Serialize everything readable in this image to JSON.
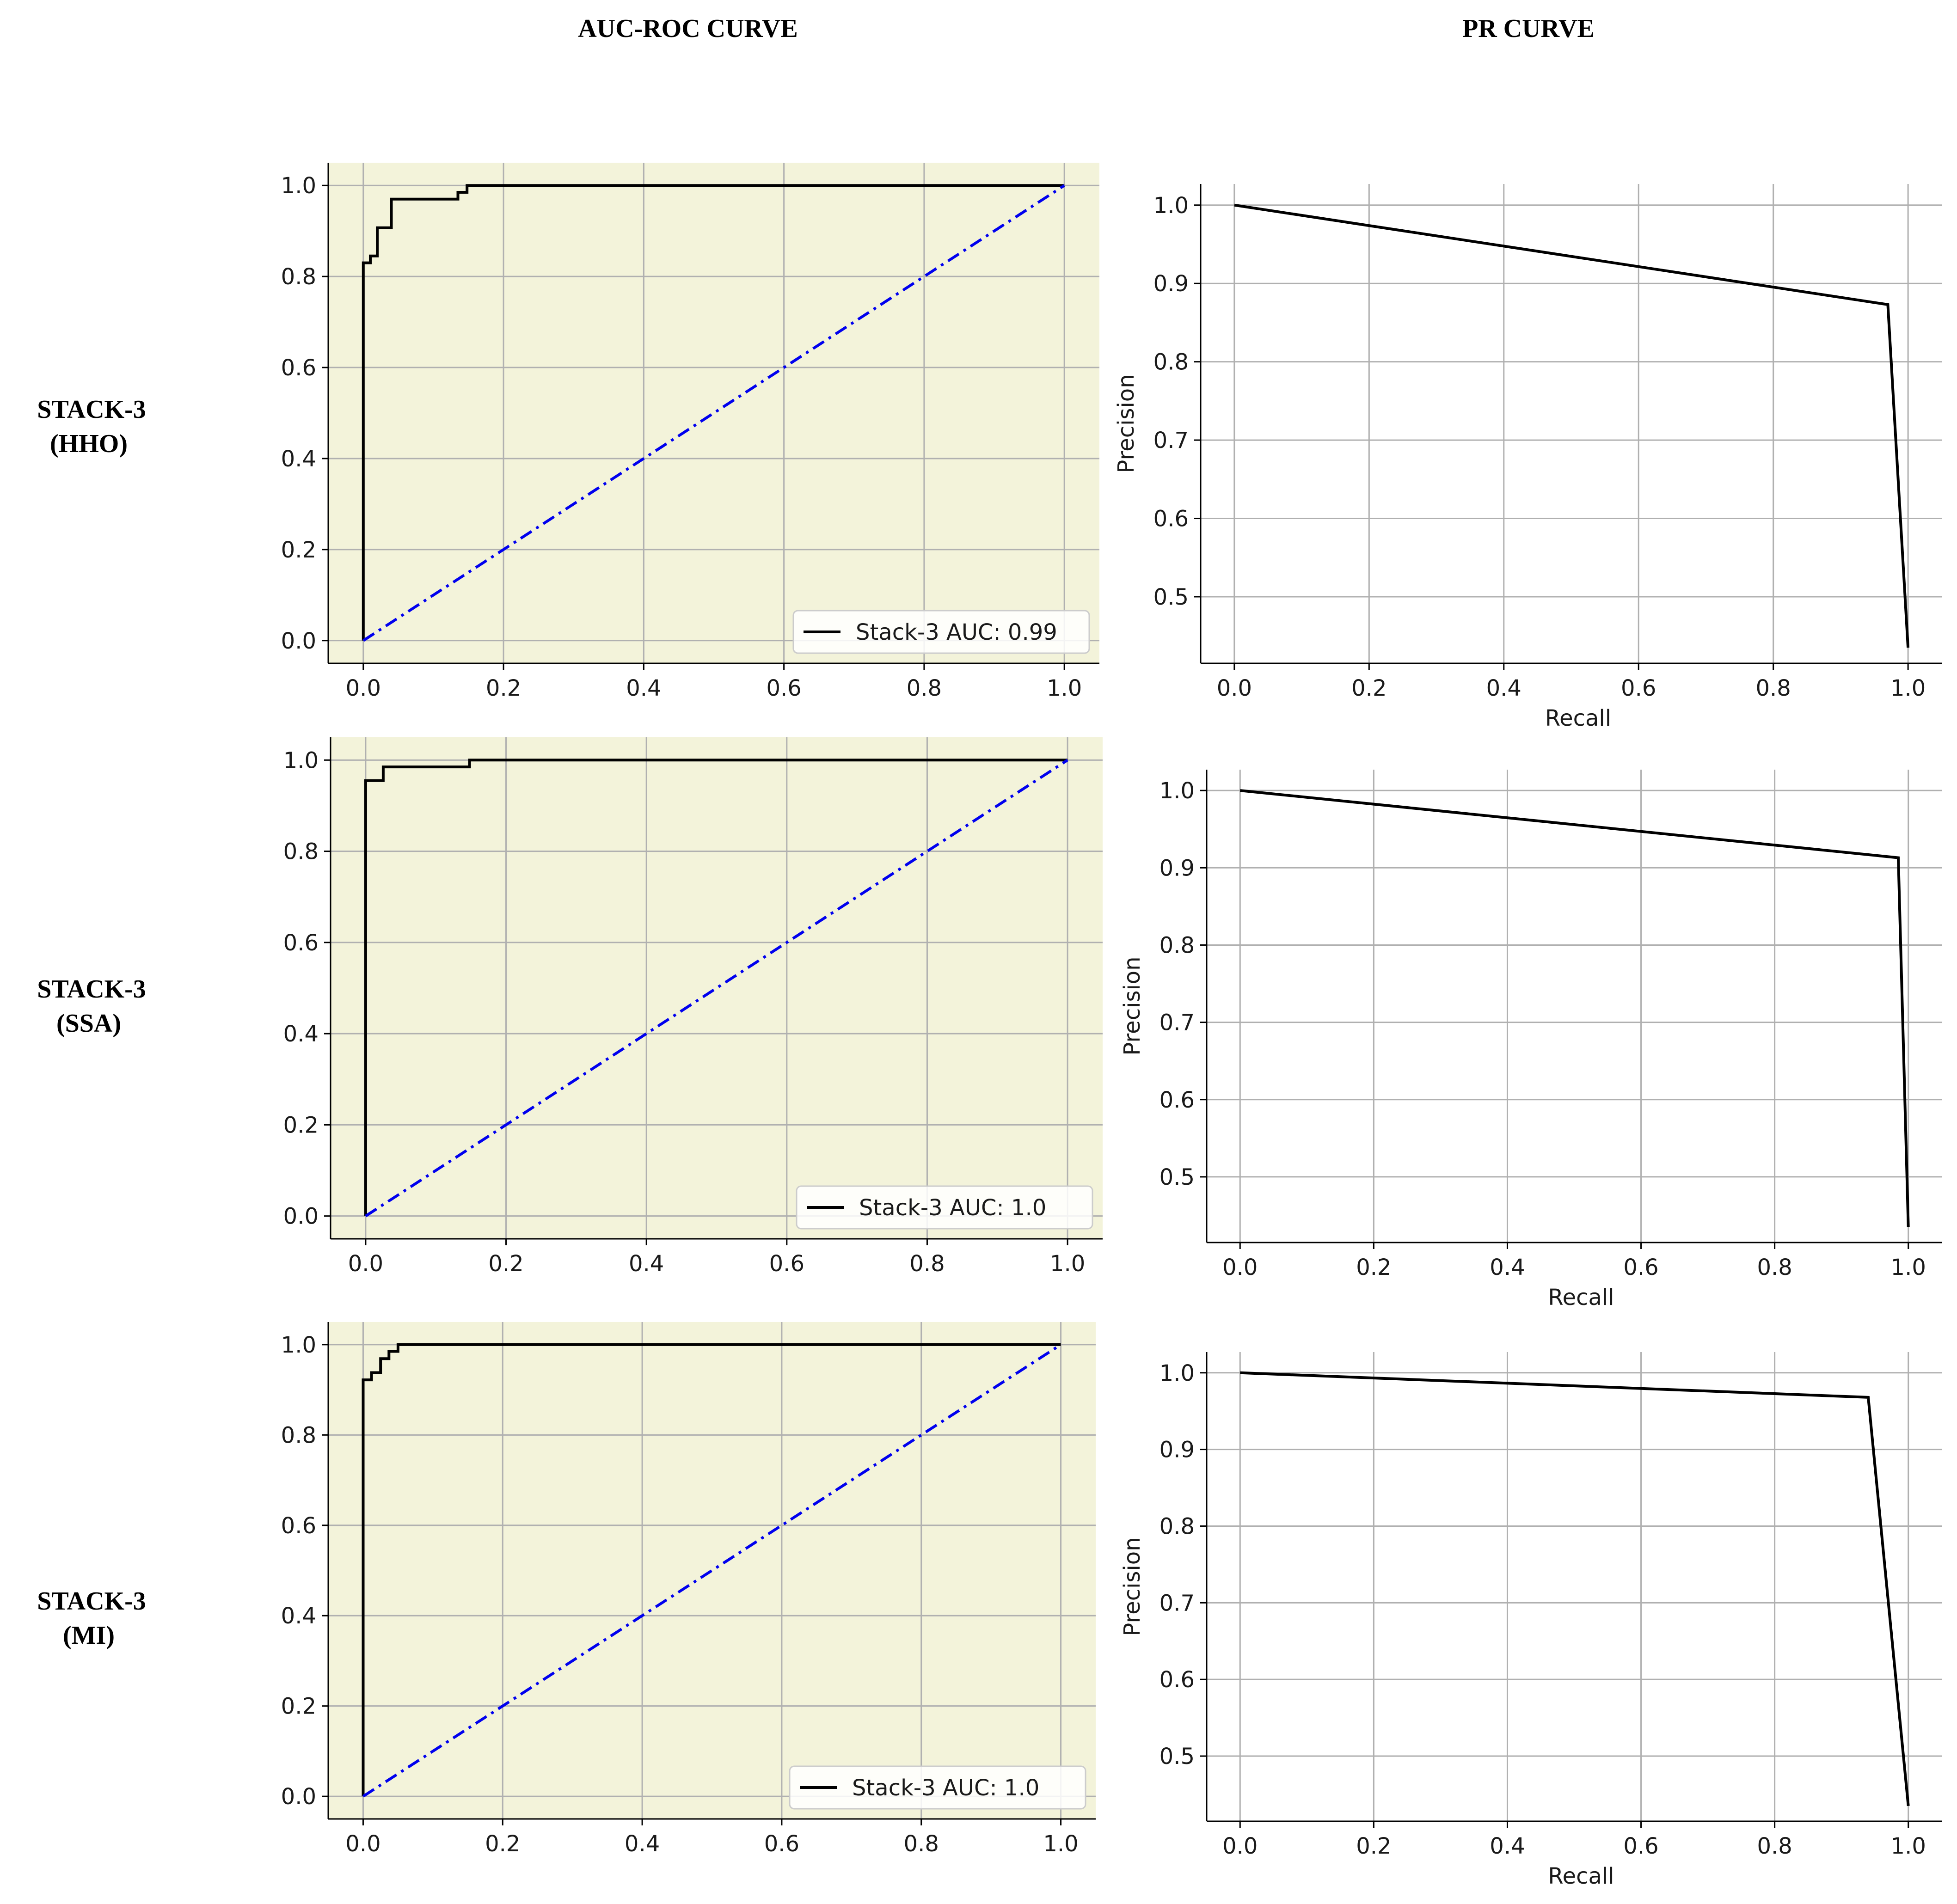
{
  "column_titles": [
    "AUC-ROC CURVE",
    "PR CURVE"
  ],
  "row_labels": [
    {
      "line1": "STACK-3",
      "line2": "(HHO)"
    },
    {
      "line1": "STACK-3",
      "line2": "(SSA)"
    },
    {
      "line1": "STACK-3",
      "line2": "(MI)"
    }
  ],
  "colors": {
    "roc_background": "#f3f3da",
    "curve": "#000000",
    "chance_line": "#0000ee",
    "grid": "#b0b0b0"
  },
  "chart_data": [
    {
      "type": "line",
      "panel": "roc",
      "row": 0,
      "title": "",
      "xlabel": "",
      "ylabel": "",
      "xlim": [
        -0.05,
        1.05
      ],
      "ylim": [
        -0.05,
        1.05
      ],
      "x_ticks": [
        "0.0",
        "0.2",
        "0.4",
        "0.6",
        "0.8",
        "1.0"
      ],
      "y_ticks": [
        "0.0",
        "0.2",
        "0.4",
        "0.6",
        "0.8",
        "1.0"
      ],
      "grid": true,
      "legend_position": "lower-right",
      "series": [
        {
          "name": "Stack-3 AUC: 0.99",
          "style": "solid",
          "x": [
            0,
            0,
            0.01,
            0.01,
            0.02,
            0.02,
            0.03,
            0.03,
            0.04,
            0.04,
            0.135,
            0.135,
            0.148,
            0.148,
            1.0
          ],
          "y": [
            0,
            0.83,
            0.83,
            0.845,
            0.845,
            0.907,
            0.907,
            0.907,
            0.907,
            0.97,
            0.97,
            0.985,
            0.985,
            1.0,
            1.0
          ]
        },
        {
          "style": "dashdot",
          "x": [
            0,
            1
          ],
          "y": [
            0,
            1
          ]
        }
      ]
    },
    {
      "type": "line",
      "panel": "pr",
      "row": 0,
      "title": "",
      "xlabel": "Recall",
      "ylabel": "Precision",
      "xlim": [
        -0.05,
        1.05
      ],
      "ylim": [
        0.415,
        1.027
      ],
      "x_ticks": [
        "0.0",
        "0.2",
        "0.4",
        "0.6",
        "0.8",
        "1.0"
      ],
      "y_ticks": [
        "0.5",
        "0.6",
        "0.7",
        "0.8",
        "0.9",
        "1.0"
      ],
      "grid": true,
      "series": [
        {
          "style": "solid",
          "x": [
            0.0,
            0.97,
            1.0
          ],
          "y": [
            1.0,
            0.873,
            0.435
          ]
        }
      ]
    },
    {
      "type": "line",
      "panel": "roc",
      "row": 1,
      "title": "",
      "xlabel": "",
      "ylabel": "",
      "xlim": [
        -0.05,
        1.05
      ],
      "ylim": [
        -0.05,
        1.05
      ],
      "x_ticks": [
        "0.0",
        "0.2",
        "0.4",
        "0.6",
        "0.8",
        "1.0"
      ],
      "y_ticks": [
        "0.0",
        "0.2",
        "0.4",
        "0.6",
        "0.8",
        "1.0"
      ],
      "grid": true,
      "legend_position": "lower-right",
      "series": [
        {
          "name": "Stack-3 AUC: 1.0",
          "style": "solid",
          "x": [
            0,
            0,
            0.025,
            0.025,
            0.148,
            0.148,
            1.0
          ],
          "y": [
            0,
            0.955,
            0.955,
            0.985,
            0.985,
            1.0,
            1.0
          ]
        },
        {
          "style": "dashdot",
          "x": [
            0,
            1
          ],
          "y": [
            0,
            1
          ]
        }
      ]
    },
    {
      "type": "line",
      "panel": "pr",
      "row": 1,
      "title": "",
      "xlabel": "Recall",
      "ylabel": "Precision",
      "xlim": [
        -0.05,
        1.05
      ],
      "ylim": [
        0.415,
        1.027
      ],
      "x_ticks": [
        "0.0",
        "0.2",
        "0.4",
        "0.6",
        "0.8",
        "1.0"
      ],
      "y_ticks": [
        "0.5",
        "0.6",
        "0.7",
        "0.8",
        "0.9",
        "1.0"
      ],
      "grid": true,
      "series": [
        {
          "style": "solid",
          "x": [
            0.0,
            0.985,
            1.0
          ],
          "y": [
            1.0,
            0.913,
            0.435
          ]
        }
      ]
    },
    {
      "type": "line",
      "panel": "roc",
      "row": 2,
      "title": "",
      "xlabel": "",
      "ylabel": "",
      "xlim": [
        -0.05,
        1.05
      ],
      "ylim": [
        -0.05,
        1.05
      ],
      "x_ticks": [
        "0.0",
        "0.2",
        "0.4",
        "0.6",
        "0.8",
        "1.0"
      ],
      "y_ticks": [
        "0.0",
        "0.2",
        "0.4",
        "0.6",
        "0.8",
        "1.0"
      ],
      "grid": true,
      "legend_position": "lower-right",
      "series": [
        {
          "name": "Stack-3 AUC: 1.0",
          "style": "solid",
          "x": [
            0,
            0,
            0.012,
            0.012,
            0.025,
            0.025,
            0.037,
            0.037,
            0.05,
            0.05,
            1.0
          ],
          "y": [
            0,
            0.922,
            0.922,
            0.938,
            0.938,
            0.969,
            0.969,
            0.985,
            0.985,
            1.0,
            1.0
          ]
        },
        {
          "style": "dashdot",
          "x": [
            0,
            1
          ],
          "y": [
            0,
            1
          ]
        }
      ]
    },
    {
      "type": "line",
      "panel": "pr",
      "row": 2,
      "title": "",
      "xlabel": "Recall",
      "ylabel": "Precision",
      "xlim": [
        -0.05,
        1.05
      ],
      "ylim": [
        0.415,
        1.027
      ],
      "x_ticks": [
        "0.0",
        "0.2",
        "0.4",
        "0.6",
        "0.8",
        "1.0"
      ],
      "y_ticks": [
        "0.5",
        "0.6",
        "0.7",
        "0.8",
        "0.9",
        "1.0"
      ],
      "grid": true,
      "series": [
        {
          "style": "solid",
          "x": [
            0.0,
            0.94,
            1.0
          ],
          "y": [
            1.0,
            0.968,
            0.435
          ]
        }
      ]
    }
  ]
}
